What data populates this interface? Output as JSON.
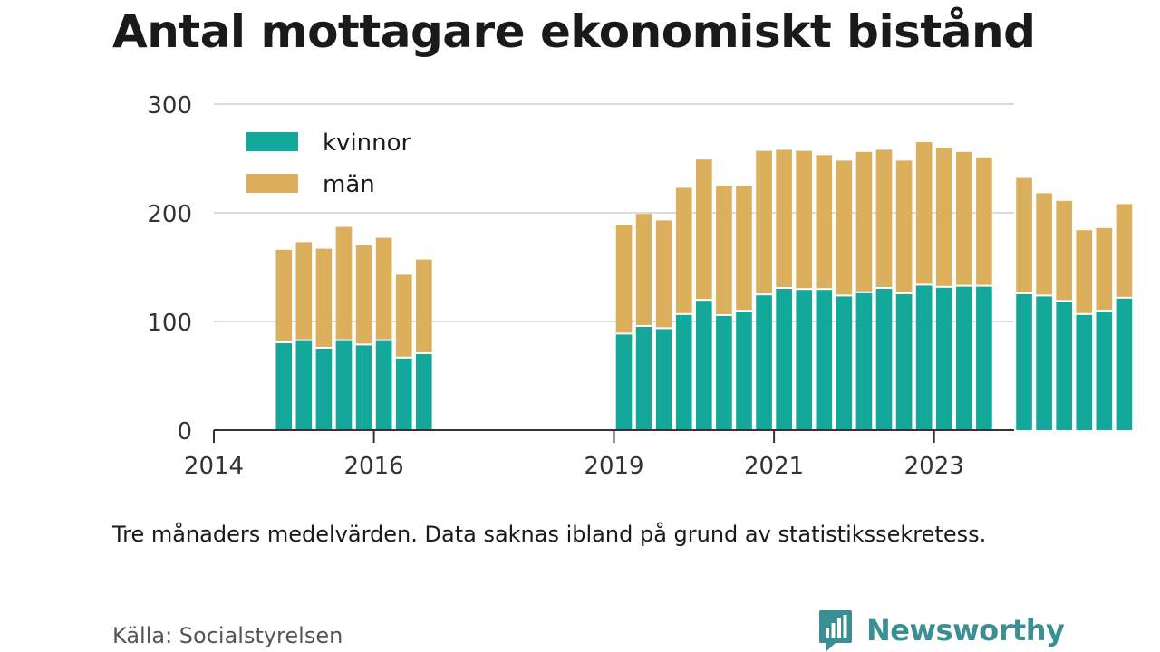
{
  "title": "Antal mottagare ekonomiskt bistånd",
  "note": "Tre månaders medelvärden. Data saknas ibland på grund av statistikssekretess.",
  "source": "Källa: Socialstyrelsen",
  "brand": {
    "name": "Newsworthy",
    "icon": "newsworthy-logo-icon",
    "color": "#3a8f93"
  },
  "chart_data": {
    "type": "bar",
    "stacked": true,
    "x_start": 2014.0,
    "x_end": 2024.0,
    "x_step": 0.25,
    "x_ticks": [
      2014,
      2016,
      2019,
      2021,
      2023
    ],
    "y_ticks": [
      0,
      100,
      200,
      300
    ],
    "ylim": [
      0,
      300
    ],
    "grid": true,
    "legend_position": "top-left",
    "colors": {
      "kvinnor": "#13a89a",
      "män": "#dcaf5c"
    },
    "series": [
      {
        "name": "kvinnor",
        "values": [
          null,
          null,
          null,
          80,
          82,
          75,
          82,
          78,
          82,
          66,
          70,
          null,
          null,
          null,
          null,
          null,
          null,
          null,
          null,
          null,
          88,
          95,
          93,
          106,
          119,
          105,
          109,
          124,
          130,
          129,
          129,
          123,
          126,
          130,
          125,
          133,
          131,
          132,
          132,
          null,
          125,
          123,
          118,
          106,
          109,
          121
        ]
      },
      {
        "name": "män",
        "values": [
          null,
          null,
          null,
          86,
          91,
          92,
          105,
          92,
          95,
          77,
          87,
          null,
          null,
          null,
          null,
          null,
          null,
          null,
          null,
          null,
          101,
          104,
          100,
          117,
          130,
          120,
          116,
          133,
          128,
          128,
          124,
          125,
          130,
          128,
          123,
          132,
          129,
          124,
          119,
          null,
          107,
          95,
          93,
          78,
          77,
          87
        ]
      }
    ]
  }
}
